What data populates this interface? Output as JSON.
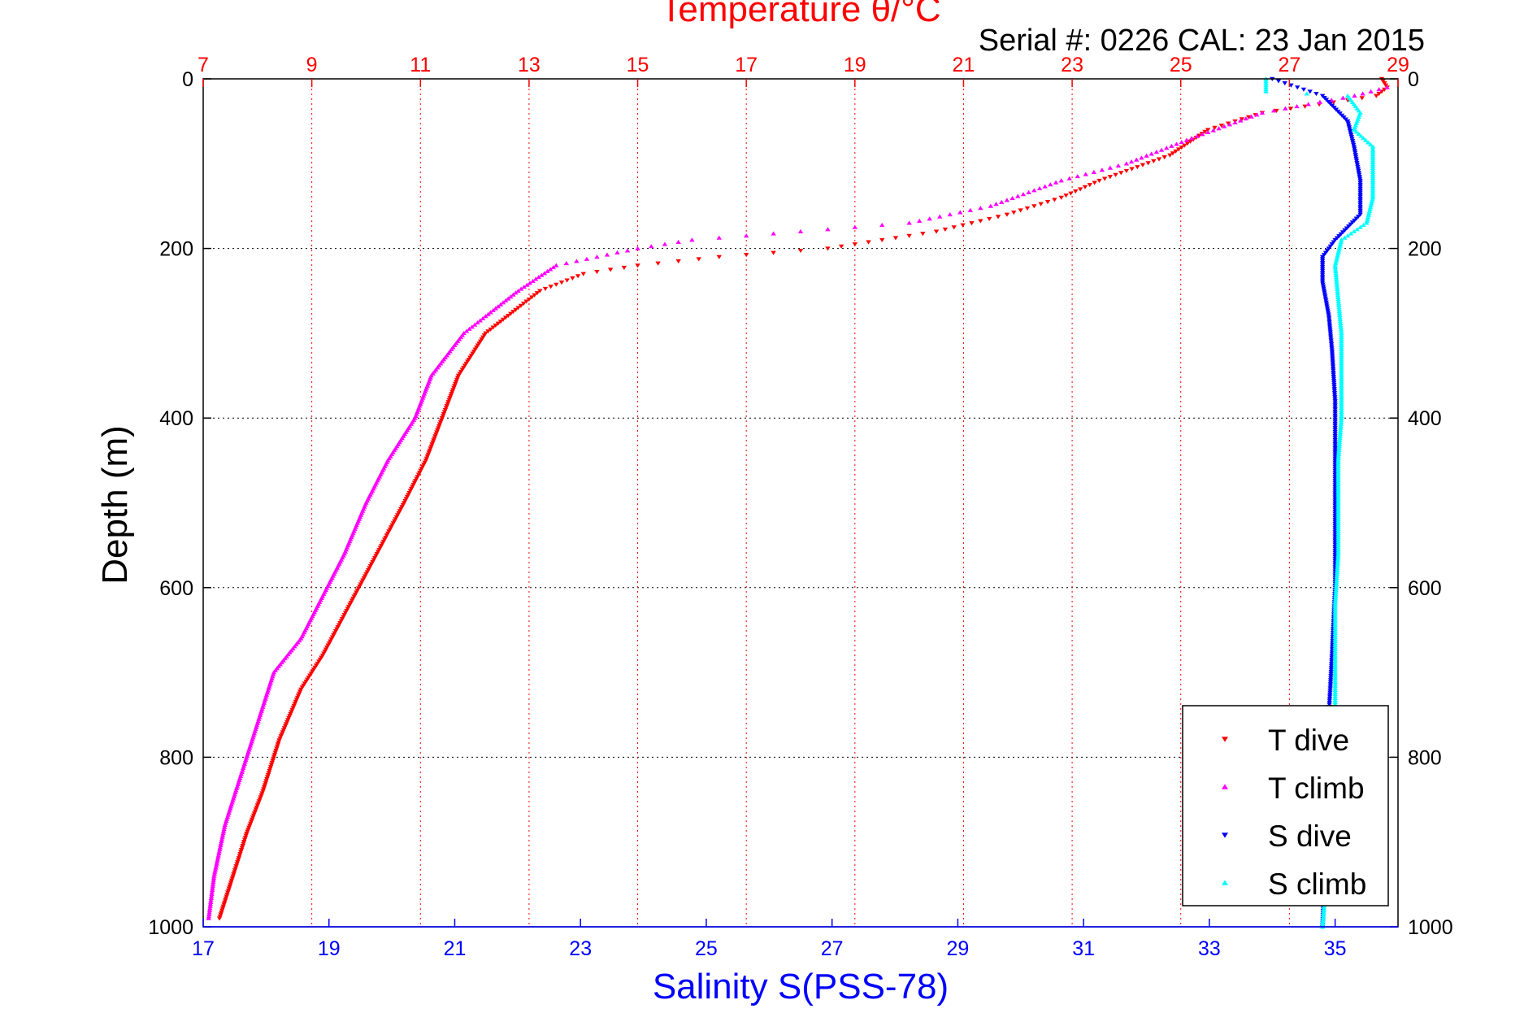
{
  "chart_data": {
    "type": "scatter",
    "title": "Temperature θ/°C",
    "subtitle": "Serial #: 0226  CAL: 23 Jan 2015",
    "ylabel": "Depth (m)",
    "xlabel_bottom": "Salinity S(PSS-78)",
    "xlabel_top": "Temperature θ/°C",
    "ylim": [
      0,
      1000
    ],
    "y_reversed": true,
    "y_ticks": [
      0,
      200,
      400,
      600,
      800,
      1000
    ],
    "temperature_axis": {
      "position": "top",
      "lim": [
        7,
        29
      ],
      "ticks": [
        7,
        9,
        11,
        13,
        15,
        17,
        19,
        21,
        23,
        25,
        27,
        29
      ],
      "color": "#ff0000"
    },
    "salinity_axis": {
      "position": "bottom",
      "lim": [
        17,
        36
      ],
      "ticks": [
        17,
        19,
        21,
        23,
        25,
        27,
        29,
        31,
        33,
        35
      ],
      "color": "#0000ff"
    },
    "grid": true,
    "legend_position": "bottom-right",
    "legend": [
      "T dive",
      "T climb",
      "S dive",
      "S climb"
    ],
    "series": [
      {
        "name": "T dive",
        "axis": "temperature",
        "color": "#ff0000",
        "marker": "triangle-down",
        "points": [
          [
            28.7,
            0
          ],
          [
            28.8,
            10
          ],
          [
            28.6,
            20
          ],
          [
            26.5,
            40
          ],
          [
            25.5,
            60
          ],
          [
            24.8,
            90
          ],
          [
            23.5,
            120
          ],
          [
            22.8,
            140
          ],
          [
            21.8,
            160
          ],
          [
            20.5,
            180
          ],
          [
            18.5,
            200
          ],
          [
            16.5,
            210
          ],
          [
            15,
            220
          ],
          [
            14,
            230
          ],
          [
            13.2,
            250
          ],
          [
            12.8,
            270
          ],
          [
            12.2,
            300
          ],
          [
            11.7,
            350
          ],
          [
            11.4,
            400
          ],
          [
            11.1,
            450
          ],
          [
            10.7,
            500
          ],
          [
            10.2,
            560
          ],
          [
            9.7,
            620
          ],
          [
            9.2,
            680
          ],
          [
            8.8,
            720
          ],
          [
            8.4,
            780
          ],
          [
            8.1,
            840
          ],
          [
            7.8,
            890
          ],
          [
            7.5,
            950
          ],
          [
            7.3,
            990
          ]
        ]
      },
      {
        "name": "T climb",
        "axis": "temperature",
        "color": "#ff00ff",
        "marker": "triangle-up",
        "points": [
          [
            28.8,
            10
          ],
          [
            28.2,
            20
          ],
          [
            26.5,
            40
          ],
          [
            25.2,
            70
          ],
          [
            24,
            100
          ],
          [
            22.8,
            120
          ],
          [
            21.5,
            150
          ],
          [
            20,
            170
          ],
          [
            18,
            180
          ],
          [
            16,
            190
          ],
          [
            15,
            200
          ],
          [
            13.5,
            220
          ],
          [
            12.8,
            250
          ],
          [
            12.2,
            280
          ],
          [
            11.8,
            300
          ],
          [
            11.2,
            350
          ],
          [
            10.9,
            400
          ],
          [
            10.4,
            450
          ],
          [
            10,
            500
          ],
          [
            9.6,
            560
          ],
          [
            9.2,
            610
          ],
          [
            8.8,
            660
          ],
          [
            8.3,
            700
          ],
          [
            8,
            760
          ],
          [
            7.7,
            820
          ],
          [
            7.4,
            880
          ],
          [
            7.2,
            940
          ],
          [
            7.1,
            990
          ]
        ]
      },
      {
        "name": "S dive",
        "axis": "salinity",
        "color": "#0000ff",
        "marker": "triangle-down",
        "points": [
          [
            34,
            0
          ],
          [
            34.8,
            20
          ],
          [
            35.2,
            50
          ],
          [
            35.3,
            80
          ],
          [
            35.4,
            120
          ],
          [
            35.4,
            160
          ],
          [
            35,
            190
          ],
          [
            34.8,
            210
          ],
          [
            34.8,
            240
          ],
          [
            34.9,
            280
          ],
          [
            34.95,
            320
          ],
          [
            35,
            380
          ],
          [
            35,
            450
          ],
          [
            35,
            520
          ],
          [
            35,
            600
          ],
          [
            34.95,
            680
          ],
          [
            34.9,
            750
          ],
          [
            34.9,
            820
          ],
          [
            34.85,
            900
          ],
          [
            34.8,
            1000
          ]
        ]
      },
      {
        "name": "S climb",
        "axis": "salinity",
        "color": "#00ffff",
        "marker": "triangle-up",
        "points": [
          [
            33.9,
            0
          ],
          [
            33.9,
            15
          ],
          [
            35.2,
            20
          ],
          [
            35.4,
            40
          ],
          [
            35.3,
            60
          ],
          [
            35.6,
            80
          ],
          [
            35.6,
            110
          ],
          [
            35.6,
            140
          ],
          [
            35.5,
            170
          ],
          [
            35.1,
            190
          ],
          [
            35,
            220
          ],
          [
            35.05,
            260
          ],
          [
            35.1,
            300
          ],
          [
            35.1,
            350
          ],
          [
            35.1,
            400
          ],
          [
            35.05,
            450
          ],
          [
            35.05,
            500
          ],
          [
            35.05,
            560
          ],
          [
            35,
            620
          ],
          [
            35,
            680
          ],
          [
            35,
            740
          ],
          [
            34.95,
            800
          ],
          [
            34.9,
            880
          ],
          [
            34.85,
            950
          ],
          [
            34.8,
            1000
          ]
        ]
      }
    ]
  }
}
